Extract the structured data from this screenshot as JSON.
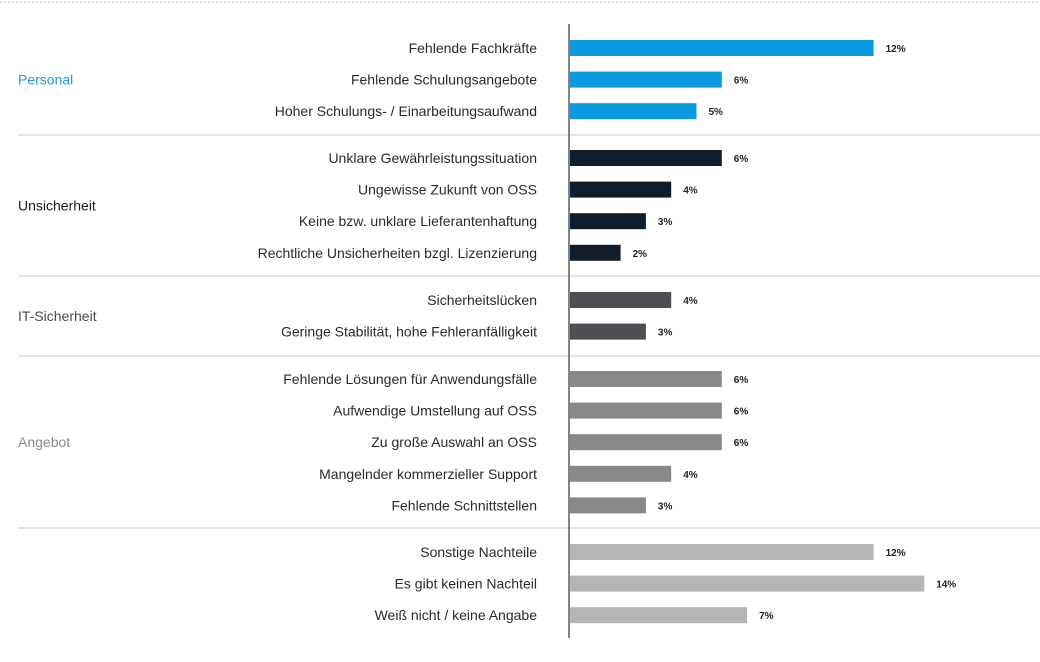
{
  "chart_data": {
    "type": "bar",
    "orientation": "horizontal",
    "title": "",
    "xlabel": "",
    "ylabel": "",
    "xlim": [
      0,
      14
    ],
    "grid": false,
    "value_suffix": "%",
    "groups": [
      {
        "name": "Personal",
        "color": "#0d9be0",
        "label_color": "#1e9ad6",
        "label_weight": "normal",
        "items": [
          {
            "label": "Fehlende Fachkräfte",
            "value": 12
          },
          {
            "label": "Fehlende Schulungsangebote",
            "value": 6
          },
          {
            "label": "Hoher Schulungs- / Einarbeitungsaufwand",
            "value": 5
          }
        ]
      },
      {
        "name": "Unsicherheit",
        "color": "#0e1f2b",
        "label_color": "#111b26",
        "label_weight": "normal",
        "items": [
          {
            "label": "Unklare Gewährleistungssituation",
            "value": 6
          },
          {
            "label": "Ungewisse Zukunft von OSS",
            "value": 4
          },
          {
            "label": "Keine bzw. unklare Lieferantenhaftung",
            "value": 3
          },
          {
            "label": "Rechtliche Unsicherheiten bzgl. Lizenzierung",
            "value": 2
          }
        ]
      },
      {
        "name": "IT-Sicherheit",
        "color": "#4e4f55",
        "label_color": "#4a4b50",
        "label_weight": "normal",
        "items": [
          {
            "label": "Sicherheitslücken",
            "value": 4
          },
          {
            "label": "Geringe Stabilität, hohe Fehleranfälligkeit",
            "value": 3
          }
        ]
      },
      {
        "name": "Angebot",
        "color": "#878889",
        "label_color": "#8a8b8c",
        "label_weight": "normal",
        "items": [
          {
            "label": "Fehlende Lösungen für Anwendungsfälle",
            "value": 6
          },
          {
            "label": "Aufwendige Umstellung auf OSS",
            "value": 6
          },
          {
            "label": "Zu große Auswahl an OSS",
            "value": 6
          },
          {
            "label": "Mangelnder kommerzieller Support",
            "value": 4
          },
          {
            "label": "Fehlende Schnittstellen",
            "value": 3
          }
        ]
      },
      {
        "name": "",
        "color": "#b4b5b6",
        "label_color": "#8a8b8c",
        "label_weight": "normal",
        "items": [
          {
            "label": "Sonstige Nachteile",
            "value": 12
          },
          {
            "label": "Es gibt keinen Nachteil",
            "value": 14
          },
          {
            "label": "Weiß nicht / keine Angabe",
            "value": 7
          }
        ]
      }
    ]
  }
}
